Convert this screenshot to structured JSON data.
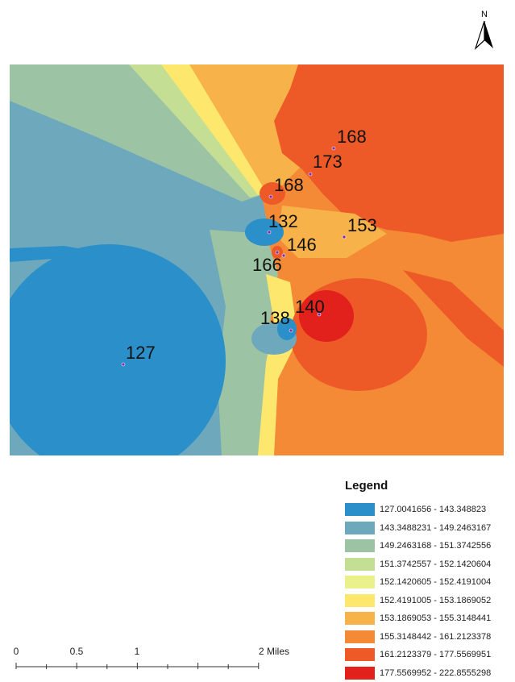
{
  "north_arrow": {
    "letter": "N"
  },
  "map": {
    "samples": [
      {
        "label": "168",
        "id": "s1"
      },
      {
        "label": "173",
        "id": "s2"
      },
      {
        "label": "168",
        "id": "s3"
      },
      {
        "label": "153",
        "id": "s4"
      },
      {
        "label": "132",
        "id": "s5"
      },
      {
        "label": "146",
        "id": "s6"
      },
      {
        "label": "166",
        "id": "s7"
      },
      {
        "label": "140",
        "id": "s8"
      },
      {
        "label": "138",
        "id": "s9"
      },
      {
        "label": "127",
        "id": "s10"
      }
    ]
  },
  "legend": {
    "title": "Legend",
    "classes": [
      {
        "label": "127.0041656 - 143.348823",
        "color": "#2b8fc9"
      },
      {
        "label": "143.3488231 - 149.2463167",
        "color": "#6ea8bc"
      },
      {
        "label": "149.2463168 - 151.3742556",
        "color": "#9cc3a4"
      },
      {
        "label": "151.3742557 - 152.1420604",
        "color": "#c4df94"
      },
      {
        "label": "152.1420605 - 152.4191004",
        "color": "#eaf08a"
      },
      {
        "label": "152.4191005 - 153.1869052",
        "color": "#fde76d"
      },
      {
        "label": "153.1869053 - 155.3148441",
        "color": "#f8b24a"
      },
      {
        "label": "155.3148442 - 161.2123378",
        "color": "#f48a36"
      },
      {
        "label": "161.2123379 - 177.5569951",
        "color": "#ed5a27"
      },
      {
        "label": "177.5569952 - 222.8555298",
        "color": "#e3211c"
      }
    ]
  },
  "scale_bar": {
    "ticks": [
      "0",
      "0.5",
      "1",
      "2 Miles"
    ]
  }
}
